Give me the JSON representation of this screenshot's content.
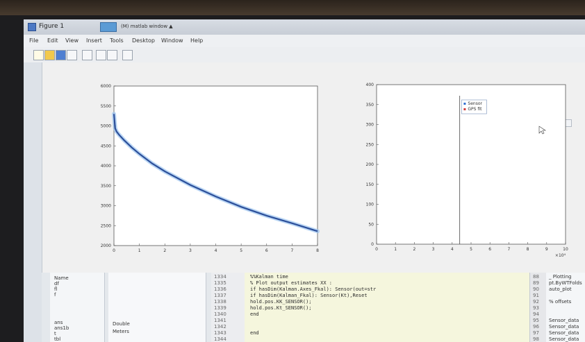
{
  "window": {
    "title": "Figure 1",
    "tab_label": "(M) matlab window ▲"
  },
  "menu": [
    "File",
    "Edit",
    "View",
    "Insert",
    "Tools",
    "Desktop",
    "Window",
    "Help"
  ],
  "toolbar": {
    "icons": [
      "new-icon",
      "open-icon",
      "save-icon",
      "print-icon",
      "zoom-in-icon",
      "zoom-out-icon",
      "pan-icon",
      "data-cursor-icon"
    ]
  },
  "chart_data": [
    {
      "type": "line",
      "x_ticks": [
        "0",
        "1",
        "2",
        "3",
        "4",
        "5",
        "6",
        "7",
        "8"
      ],
      "y_ticks": [
        "2000",
        "2500",
        "3000",
        "3500",
        "4000",
        "4500",
        "5000",
        "5500",
        "6000"
      ],
      "xlim": [
        0,
        8
      ],
      "ylim": [
        2000,
        6000
      ],
      "grid": false,
      "series": [
        {
          "color": "#2c4f9a",
          "x": [
            0.0,
            0.05,
            0.1,
            0.2,
            0.4,
            0.7,
            1.0,
            1.5,
            2.0,
            3.0,
            4.0,
            5.0,
            6.0,
            7.0,
            8.0
          ],
          "y": [
            5300,
            4940,
            4860,
            4780,
            4640,
            4460,
            4300,
            4060,
            3860,
            3520,
            3230,
            2970,
            2750,
            2560,
            2360
          ]
        }
      ]
    },
    {
      "type": "scatter",
      "x_ticks": [
        "0",
        "1",
        "2",
        "3",
        "4",
        "5",
        "6",
        "7",
        "8",
        "9",
        "10"
      ],
      "x_exponent": "×10⁴",
      "y_ticks": [
        "0",
        "50",
        "100",
        "150",
        "200",
        "250",
        "300",
        "350",
        "400"
      ],
      "xlim": [
        0,
        10
      ],
      "ylim": [
        0,
        400
      ],
      "grid": false,
      "legend_position": "top-right",
      "series": [
        {
          "name": "Sensor",
          "color": "#2f6fd1",
          "marker": "square"
        },
        {
          "name": "GPS fit",
          "color": "#d13b3b",
          "marker": "square"
        }
      ]
    }
  ],
  "workspace": {
    "lines": [
      "Name",
      "df",
      "fl",
      "f",
      "",
      "",
      "",
      "",
      "ans",
      "ans1b",
      "t",
      "tbl"
    ]
  },
  "command": {
    "lines": [
      "",
      "",
      "",
      "",
      "",
      "",
      "Double",
      "Meters"
    ]
  },
  "editor": {
    "line_numbers": [
      "1334",
      "1335",
      "1336",
      "1337",
      "1338",
      "1339",
      "1340",
      "1341",
      "1342",
      "1343",
      "1344"
    ],
    "code": [
      "%%Kalman time",
      "% Plot output estimates XX :",
      "if hasDim(Kalman.Axes_Fkal): Sensor(out=str",
      "if hasDim(Kalman_Fkal): Sensor(Kt),Reset",
      "  hold.pos.KK_SENSOR();",
      "  hold.pos.Kt_SENSOR();",
      "  end",
      "",
      "",
      "  end",
      ""
    ]
  },
  "editor_right": {
    "line_numbers": [
      "88",
      "89",
      "90",
      "91",
      "92",
      "93",
      "94",
      "95",
      "96",
      "97",
      "98"
    ],
    "lines": [
      "_ Plotting",
      "pt.ByWTFolds",
      "auto_plot",
      "",
      "% offsets",
      "",
      "",
      "Sensor_data",
      "Sensor_data",
      "Sensor_data",
      "Sensor_data"
    ]
  }
}
